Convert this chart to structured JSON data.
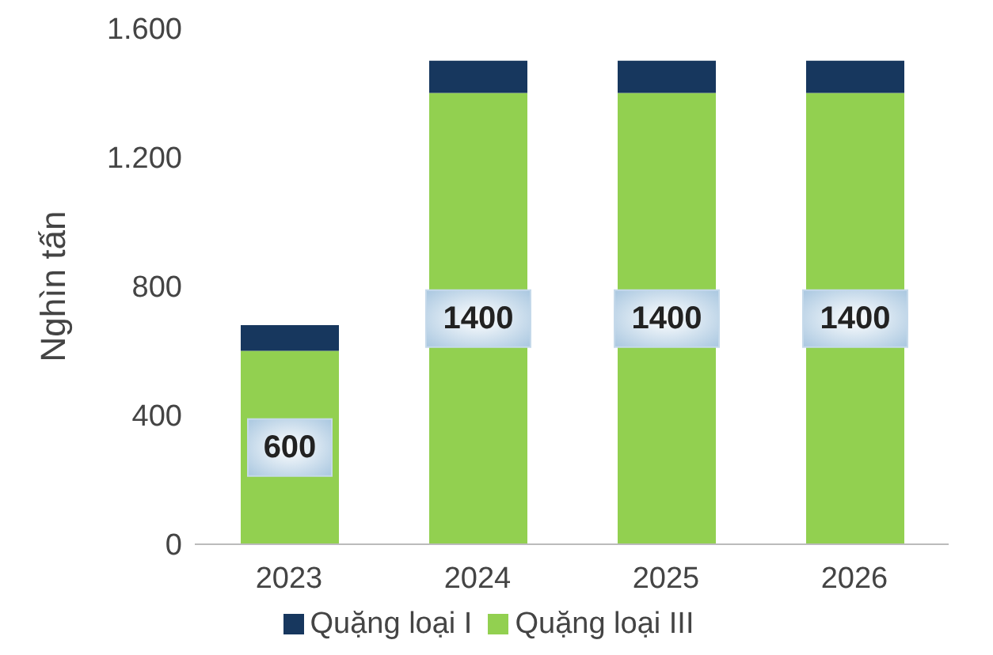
{
  "chart_data": {
    "type": "bar",
    "stacked": true,
    "ylabel": "Nghìn tấn",
    "categories": [
      "2023",
      "2024",
      "2025",
      "2026"
    ],
    "series": [
      {
        "name": "Quặng loại III",
        "color": "#92d050",
        "values": [
          600,
          1400,
          1400,
          1400
        ],
        "value_labels": [
          "600",
          "1400",
          "1400",
          "1400"
        ]
      },
      {
        "name": "Quặng loại I",
        "color": "#17375e",
        "values": [
          80,
          100,
          100,
          100
        ]
      }
    ],
    "ylim": [
      0,
      1600
    ],
    "yticks": [
      0,
      400,
      800,
      {
        "value": 1200,
        "label": "1.200"
      },
      {
        "value": 1600,
        "label": "1.600"
      }
    ],
    "legend": "bottom"
  }
}
